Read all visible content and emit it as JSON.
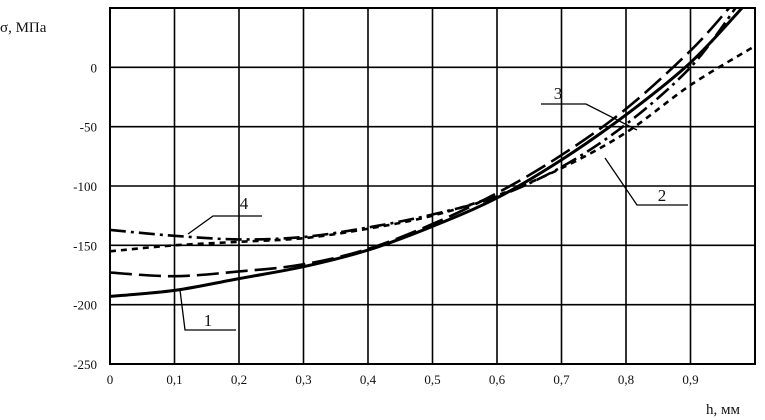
{
  "chart_data": {
    "type": "line",
    "xlabel": "h, мм",
    "ylabel": "σ, МПа",
    "xlim": [
      0,
      1.0
    ],
    "ylim": [
      -250,
      50
    ],
    "xticks": [
      "0",
      "0,1",
      "0,2",
      "0,3",
      "0,4",
      "0,5",
      "0,6",
      "0,7",
      "0,8",
      "0,9"
    ],
    "yticks": [
      "0",
      "-50",
      "-100",
      "-150",
      "-200",
      "-250"
    ],
    "grid": true,
    "series": [
      {
        "name": "1",
        "style": "solid",
        "x": [
          0,
          0.1,
          0.2,
          0.3,
          0.4,
          0.5,
          0.6,
          0.7,
          0.8,
          0.9,
          0.98
        ],
        "y": [
          -193,
          -188,
          -178,
          -168,
          -154,
          -134,
          -110,
          -78,
          -40,
          4,
          50
        ]
      },
      {
        "name": "2",
        "style": "short-dash",
        "x": [
          0,
          0.1,
          0.2,
          0.3,
          0.4,
          0.5,
          0.6,
          0.7,
          0.8,
          0.9,
          1.0
        ],
        "y": [
          -155,
          -150,
          -147,
          -144,
          -136,
          -125,
          -108,
          -85,
          -55,
          -15,
          18
        ]
      },
      {
        "name": "3",
        "style": "long-dash",
        "x": [
          0,
          0.1,
          0.2,
          0.3,
          0.4,
          0.5,
          0.6,
          0.7,
          0.8,
          0.9,
          0.96
        ],
        "y": [
          -173,
          -176,
          -172,
          -166,
          -153,
          -132,
          -106,
          -74,
          -35,
          14,
          50
        ]
      },
      {
        "name": "4",
        "style": "dash-dot",
        "x": [
          0,
          0.1,
          0.2,
          0.3,
          0.4,
          0.5,
          0.6,
          0.7,
          0.8,
          0.9,
          0.97
        ],
        "y": [
          -137,
          -142,
          -145,
          -143,
          -135,
          -124,
          -109,
          -84,
          -48,
          0,
          50
        ]
      }
    ],
    "annotations": [
      {
        "text": "1",
        "series": "1"
      },
      {
        "text": "2",
        "series": "2"
      },
      {
        "text": "3",
        "series": "3"
      },
      {
        "text": "4",
        "series": "4"
      }
    ]
  }
}
